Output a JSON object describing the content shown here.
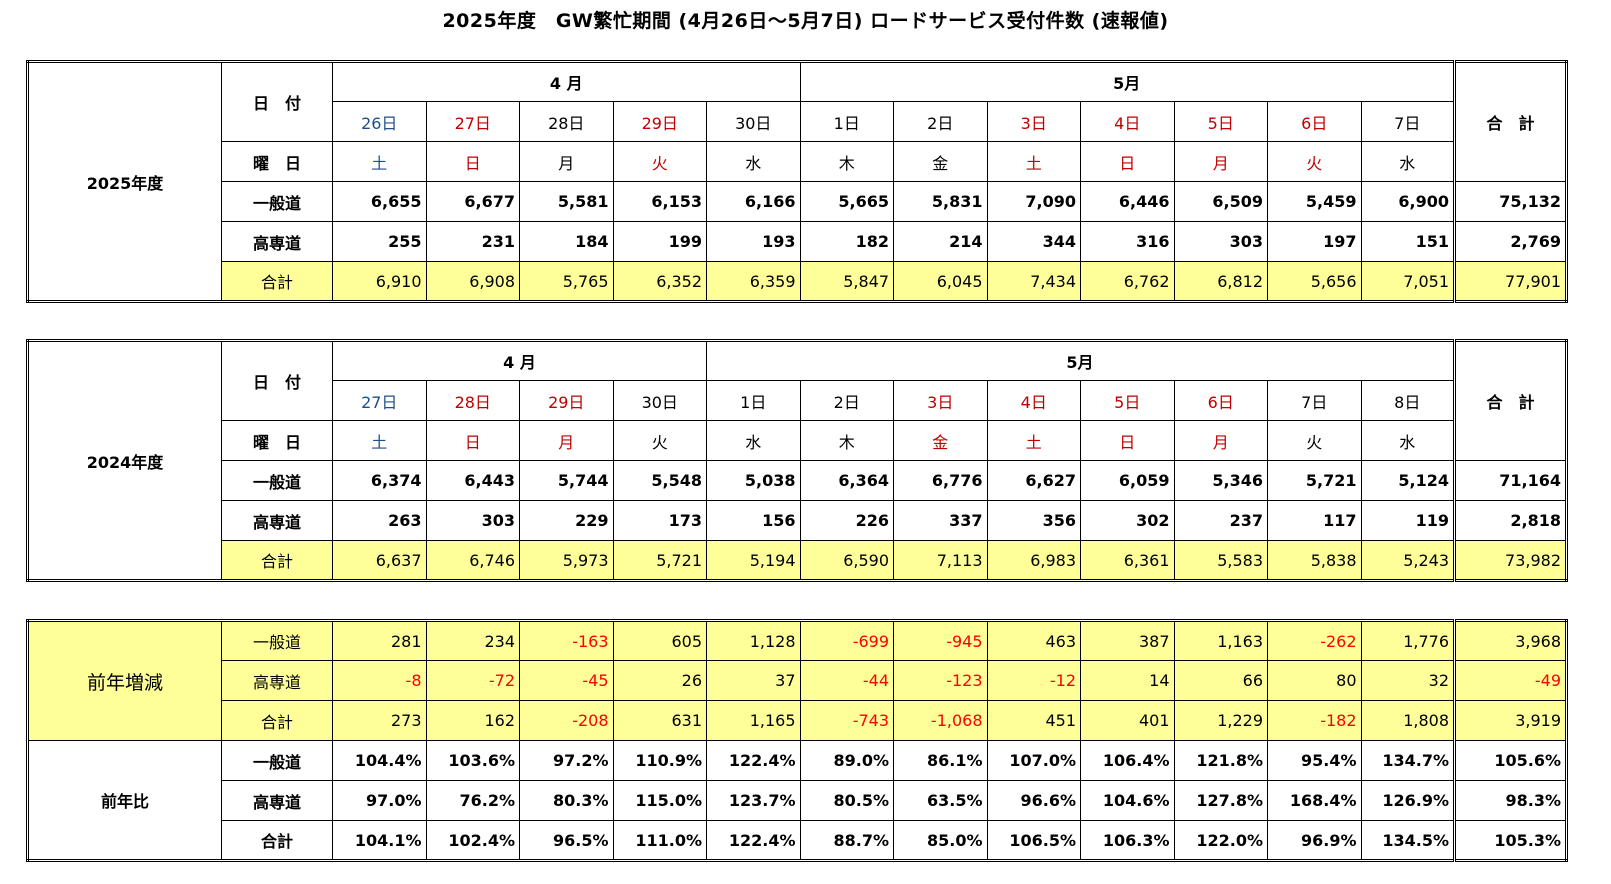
{
  "title": "2025年度　GW繁忙期間 (4月26日〜5月7日) ロードサービス受付件数 (速報値)",
  "labels": {
    "date": "日　付",
    "weekday": "曜　日",
    "general": "一般道",
    "highway": "高専道",
    "total": "合計",
    "grand_total": "合　計",
    "april": "4 月",
    "may": "5月"
  },
  "y2025": {
    "label": "2025年度",
    "dates": [
      "26日",
      "27日",
      "28日",
      "29日",
      "30日",
      "1日",
      "2日",
      "3日",
      "4日",
      "5日",
      "6日",
      "7日"
    ],
    "date_colors": [
      "blue",
      "red",
      "black",
      "red",
      "black",
      "black",
      "black",
      "red",
      "red",
      "red",
      "red",
      "black"
    ],
    "weekdays": [
      "土",
      "日",
      "月",
      "火",
      "水",
      "木",
      "金",
      "土",
      "日",
      "月",
      "火",
      "水"
    ],
    "weekday_colors": [
      "blue",
      "red",
      "black",
      "red",
      "black",
      "black",
      "black",
      "red",
      "red",
      "red",
      "red",
      "black"
    ],
    "general": [
      "6,655",
      "6,677",
      "5,581",
      "6,153",
      "6,166",
      "5,665",
      "5,831",
      "7,090",
      "6,446",
      "6,509",
      "5,459",
      "6,900"
    ],
    "general_total": "75,132",
    "highway": [
      "255",
      "231",
      "184",
      "199",
      "193",
      "182",
      "214",
      "344",
      "316",
      "303",
      "197",
      "151"
    ],
    "highway_total": "2,769",
    "total": [
      "6,910",
      "6,908",
      "5,765",
      "6,352",
      "6,359",
      "5,847",
      "6,045",
      "7,434",
      "6,762",
      "6,812",
      "5,656",
      "7,051"
    ],
    "total_total": "77,901"
  },
  "y2024": {
    "label": "2024年度",
    "dates": [
      "27日",
      "28日",
      "29日",
      "30日",
      "1日",
      "2日",
      "3日",
      "4日",
      "5日",
      "6日",
      "7日",
      "8日"
    ],
    "date_colors": [
      "blue",
      "red",
      "red",
      "black",
      "black",
      "black",
      "red",
      "red",
      "red",
      "red",
      "black",
      "black"
    ],
    "weekdays": [
      "土",
      "日",
      "月",
      "火",
      "水",
      "木",
      "金",
      "土",
      "日",
      "月",
      "火",
      "水"
    ],
    "weekday_colors": [
      "blue",
      "red",
      "red",
      "black",
      "black",
      "black",
      "red",
      "red",
      "red",
      "red",
      "black",
      "black"
    ],
    "general": [
      "6,374",
      "6,443",
      "5,744",
      "5,548",
      "5,038",
      "6,364",
      "6,776",
      "6,627",
      "6,059",
      "5,346",
      "5,721",
      "5,124"
    ],
    "general_total": "71,164",
    "highway": [
      "263",
      "303",
      "229",
      "173",
      "156",
      "226",
      "337",
      "356",
      "302",
      "237",
      "117",
      "119"
    ],
    "highway_total": "2,818",
    "total": [
      "6,637",
      "6,746",
      "5,973",
      "5,721",
      "5,194",
      "6,590",
      "7,113",
      "6,983",
      "6,361",
      "5,583",
      "5,838",
      "5,243"
    ],
    "total_total": "73,982"
  },
  "diff": {
    "label": "前年増減",
    "general": [
      "281",
      "234",
      "-163",
      "605",
      "1,128",
      "-699",
      "-945",
      "463",
      "387",
      "1,163",
      "-262",
      "1,776"
    ],
    "general_total": "3,968",
    "highway": [
      "-8",
      "-72",
      "-45",
      "26",
      "37",
      "-44",
      "-123",
      "-12",
      "14",
      "66",
      "80",
      "32"
    ],
    "highway_total": "-49",
    "total": [
      "273",
      "162",
      "-208",
      "631",
      "1,165",
      "-743",
      "-1,068",
      "451",
      "401",
      "1,229",
      "-182",
      "1,808"
    ],
    "total_total": "3,919"
  },
  "ratio": {
    "label": "前年比",
    "general": [
      "104.4%",
      "103.6%",
      "97.2%",
      "110.9%",
      "122.4%",
      "89.0%",
      "86.1%",
      "107.0%",
      "106.4%",
      "121.8%",
      "95.4%",
      "134.7%"
    ],
    "general_total": "105.6%",
    "highway": [
      "97.0%",
      "76.2%",
      "80.3%",
      "115.0%",
      "123.7%",
      "80.5%",
      "63.5%",
      "96.6%",
      "104.6%",
      "127.8%",
      "168.4%",
      "126.9%"
    ],
    "highway_total": "98.3%",
    "total": [
      "104.1%",
      "102.4%",
      "96.5%",
      "111.0%",
      "122.4%",
      "88.7%",
      "85.0%",
      "106.5%",
      "106.3%",
      "122.0%",
      "96.9%",
      "134.5%"
    ],
    "total_total": "105.3%"
  }
}
